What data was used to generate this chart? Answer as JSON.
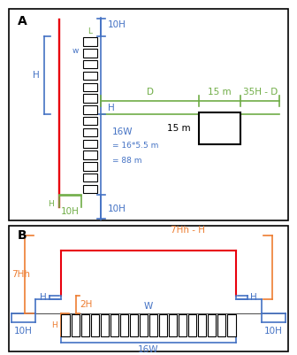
{
  "fig_width": 3.36,
  "fig_height": 4.01,
  "dpi": 100,
  "bg_color": "#ffffff",
  "border_color": "#000000",
  "red_color": "#e8000d",
  "blue_color": "#4472c4",
  "green_color": "#70ad47",
  "orange_color": "#ed7d31",
  "black_color": "#000000",
  "panel_A_label": "A",
  "panel_B_label": "B",
  "text_16W": "16W",
  "text_16W_eq1": "= 16*5.5 m",
  "text_16W_eq2": "= 88 m",
  "text_15m_green": "15 m",
  "text_15m_black": "15 m",
  "text_D": "D",
  "text_35HD": "35H - D",
  "text_10H_top": "10H",
  "text_10H_bot": "10H",
  "text_10H_green": "10H",
  "text_H_left": "H",
  "text_H_mid": "H",
  "text_L": "L",
  "text_w": "w",
  "text_7Hh": "7Hh",
  "text_7HhH": "7Hh - H",
  "text_H_B_left": "H",
  "text_H_B_right": "H",
  "text_10H_B_left": "10H",
  "text_10H_B_right": "10H",
  "text_2H": "2H",
  "text_W_B": "W",
  "text_Hc": "H",
  "text_16W_B": "16W",
  "fence_A_n_slats": 14,
  "fence_B_n_slats": 18
}
